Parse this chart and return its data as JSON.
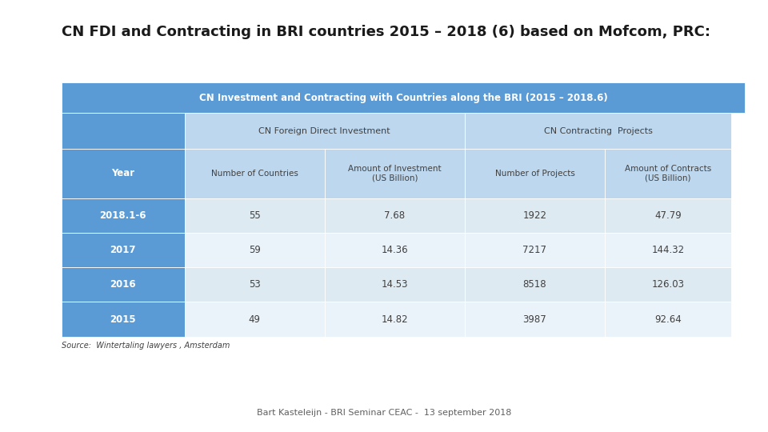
{
  "title": "CN FDI and Contracting in BRI countries 2015 – 2018 (6) based on Mofcom, PRC:",
  "table_title": "CN Investment and Contracting with Countries along the BRI (2015 – 2018.6)",
  "col_group1": "CN Foreign Direct Investment",
  "col_group2": "CN Contracting  Projects",
  "col_year": "Year",
  "col_headers": [
    "Number of Countries",
    "Amount of Investment\n(US Billion)",
    "Number of Projects",
    "Amount of Contracts\n(US Billion)"
  ],
  "rows": [
    {
      "year": "2018.1-6",
      "values": [
        "55",
        "7.68",
        "1922",
        "47.79"
      ]
    },
    {
      "year": "2017",
      "values": [
        "59",
        "14.36",
        "7217",
        "144.32"
      ]
    },
    {
      "year": "2016",
      "values": [
        "53",
        "14.53",
        "8518",
        "126.03"
      ]
    },
    {
      "year": "2015",
      "values": [
        "49",
        "14.82",
        "3987",
        "92.64"
      ]
    }
  ],
  "source": "Source:  Wintertaling lawyers , Amsterdam",
  "footer": "Bart Kasteleijn - BRI Seminar CEAC -  13 september 2018",
  "color_header_dark": "#5B9BD5",
  "color_header_mid": "#BDD7EE",
  "color_row_label": "#5B9BD5",
  "color_row_data": "#DEEAF1",
  "color_row_data_alt": "#EBF3FA",
  "color_title_text": "#FFFFFF",
  "color_label_text": "#FFFFFF",
  "color_data_text": "#404040",
  "color_group_text": "#404040",
  "color_year_text": "#FFFFFF"
}
